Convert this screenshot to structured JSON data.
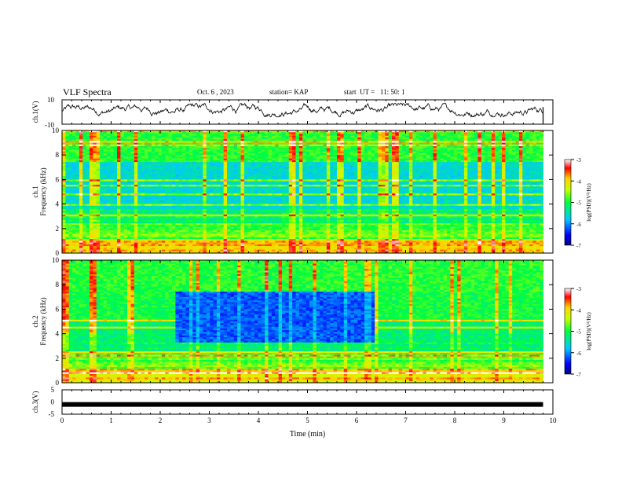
{
  "header": {
    "title": "VLF Spectra",
    "date": "Oct. 6 , 2023",
    "station": "station= KAP",
    "start": "start  UT =   11: 50: 1"
  },
  "colorbar": {
    "label": "log(PSD)(V²/Hz)",
    "ticks": [
      "-3",
      "-4",
      "-5",
      "-6",
      "-7"
    ],
    "range": [
      -7,
      -3
    ]
  },
  "chart_data": [
    {
      "type": "line",
      "panel": "ch1-waveform",
      "ylabel": "ch.1(V)",
      "ylim": [
        -10,
        10
      ],
      "yticks": [
        "10",
        "-10"
      ],
      "xlim": [
        0,
        10
      ],
      "description_values": "waveform fluctuating roughly between -4 and 7 V"
    },
    {
      "type": "heatmap",
      "panel": "ch1-spectrogram",
      "ylabel": "ch.1\nFrequency (kHz)",
      "ylim": [
        0,
        10
      ],
      "yticks": [
        "0",
        "2",
        "4",
        "6",
        "8",
        "10"
      ],
      "xlim": [
        0,
        10
      ],
      "data_extent_min": 9.8
    },
    {
      "type": "heatmap",
      "panel": "ch2-spectrogram",
      "ylabel": "ch.2\nFrequency (kHz)",
      "ylim": [
        0,
        10
      ],
      "yticks": [
        "0",
        "2",
        "4",
        "6",
        "8",
        "10"
      ],
      "xlim": [
        0,
        10
      ],
      "quiet_interval_min": [
        2.3,
        6.4
      ],
      "data_extent_min": 9.8
    },
    {
      "type": "line",
      "panel": "ch3-waveform",
      "ylabel": "ch.3(V)",
      "ylim": [
        -5,
        5
      ],
      "yticks": [
        "5",
        "0",
        "-5"
      ],
      "xlim": [
        0,
        10
      ],
      "xlabel": "Time (min)",
      "xticks": [
        "0",
        "1",
        "2",
        "3",
        "4",
        "5",
        "6",
        "7",
        "8",
        "9",
        "10"
      ],
      "level": -1
    }
  ]
}
